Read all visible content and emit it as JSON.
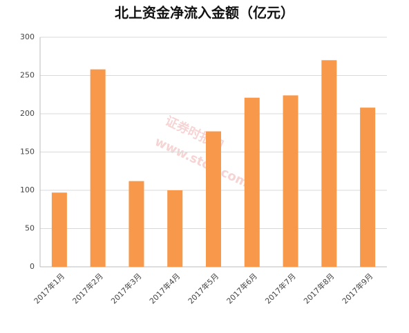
{
  "chart_data": {
    "type": "bar",
    "title": "北上资金净流入金额（亿元）",
    "categories": [
      "2017年1月",
      "2017年2月",
      "2017年3月",
      "2017年4月",
      "2017年5月",
      "2017年6月",
      "2017年7月",
      "2017年8月",
      "2017年9月"
    ],
    "values": [
      97,
      258,
      112,
      100,
      177,
      221,
      224,
      270,
      208
    ],
    "color": "#f7984a",
    "ylim": [
      0,
      300
    ],
    "yticks": [
      0,
      50,
      100,
      150,
      200,
      250,
      300
    ],
    "grid": true,
    "watermark": [
      "证券时报网",
      "www.stcn.com"
    ]
  }
}
